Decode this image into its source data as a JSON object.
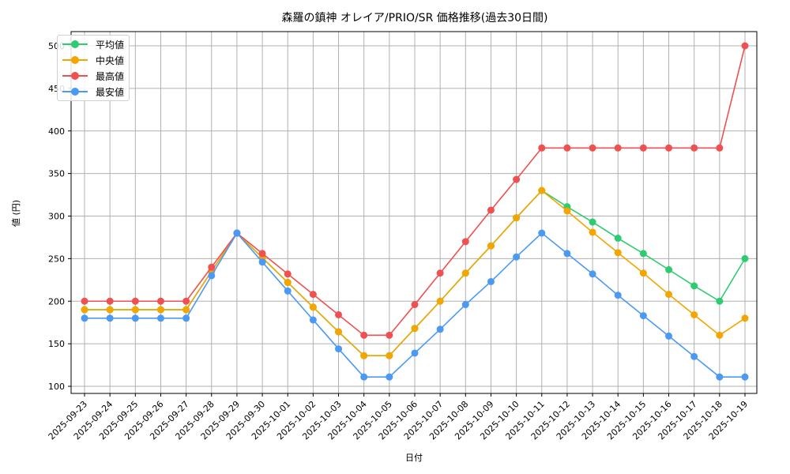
{
  "chart_data": {
    "type": "line",
    "title": "森羅の鎮神 オレイア/PRIO/SR 価格推移(過去30日間)",
    "xlabel": "日付",
    "ylabel": "値 (円)",
    "ylim": [
      90,
      520
    ],
    "yticks": [
      100,
      150,
      200,
      250,
      300,
      350,
      400,
      450,
      500
    ],
    "grid": true,
    "legend_position": "upper left",
    "x": [
      "2025-09-23",
      "2025-09-24",
      "2025-09-25",
      "2025-09-26",
      "2025-09-27",
      "2025-09-28",
      "2025-09-29",
      "2025-09-30",
      "2025-10-01",
      "2025-10-02",
      "2025-10-03",
      "2025-10-04",
      "2025-10-05",
      "2025-10-06",
      "2025-10-07",
      "2025-10-08",
      "2025-10-09",
      "2025-10-10",
      "2025-10-11",
      "2025-10-12",
      "2025-10-13",
      "2025-10-14",
      "2025-10-15",
      "2025-10-16",
      "2025-10-17",
      "2025-10-18",
      "2025-10-19"
    ],
    "series": [
      {
        "name": "平均値",
        "color": "#2ecc71",
        "values": [
          190,
          190,
          190,
          190,
          190,
          235,
          280,
          251,
          222,
          193,
          164,
          136,
          136,
          168,
          200,
          233,
          265,
          298,
          330,
          311,
          293,
          274,
          256,
          237,
          218,
          200,
          250
        ]
      },
      {
        "name": "中央値",
        "color": "#f5a500",
        "values": [
          190,
          190,
          190,
          190,
          190,
          235,
          280,
          251,
          222,
          193,
          164,
          136,
          136,
          168,
          200,
          233,
          265,
          298,
          330,
          306,
          281,
          257,
          233,
          208,
          184,
          160,
          180
        ]
      },
      {
        "name": "最高値",
        "color": "#f05050",
        "values": [
          200,
          200,
          200,
          200,
          200,
          240,
          280,
          256,
          232,
          208,
          184,
          160,
          160,
          196,
          233,
          270,
          307,
          343,
          380,
          380,
          380,
          380,
          380,
          380,
          380,
          380,
          500
        ]
      },
      {
        "name": "最安値",
        "color": "#4a9af5",
        "values": [
          180,
          180,
          180,
          180,
          180,
          230,
          280,
          246,
          212,
          178,
          144,
          111,
          111,
          139,
          167,
          196,
          223,
          252,
          280,
          256,
          232,
          207,
          183,
          159,
          135,
          111,
          111
        ]
      }
    ]
  }
}
